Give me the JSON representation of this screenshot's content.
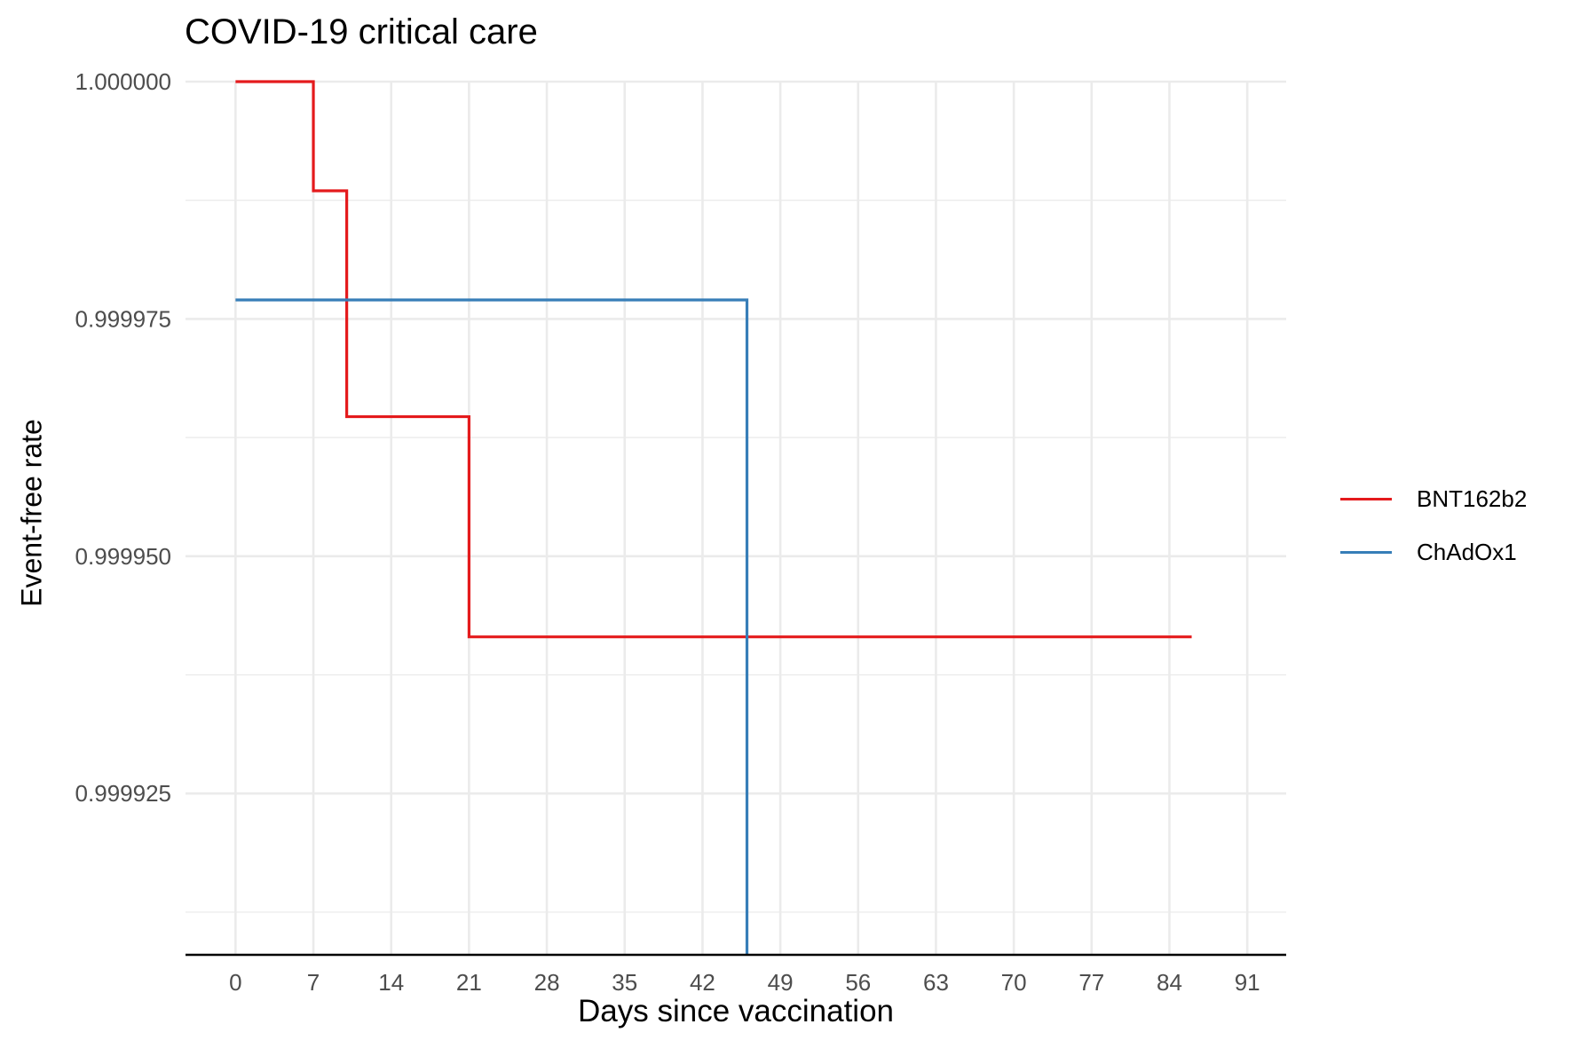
{
  "chart_data": {
    "type": "line",
    "step": true,
    "title": "COVID-19 critical care",
    "xlabel": "Days since vaccination",
    "ylabel": "Event-free rate",
    "x_ticks": [
      0,
      7,
      14,
      21,
      28,
      35,
      42,
      49,
      56,
      63,
      70,
      77,
      84,
      91
    ],
    "y_ticks": [
      0.999925,
      0.99995,
      0.999975,
      1.0
    ],
    "y_tick_labels": [
      "0.999925",
      "0.999950",
      "0.999975",
      "1.000000"
    ],
    "xlim": [
      -4.5,
      94.5
    ],
    "ylim": [
      0.999908,
      1.0
    ],
    "grid": true,
    "legend_position": "right",
    "series": [
      {
        "name": "BNT162b2",
        "color": "#E41A1C",
        "x": [
          0,
          7,
          7,
          10,
          10,
          21,
          21,
          86
        ],
        "y": [
          1.0,
          1.0,
          0.9999885,
          0.9999885,
          0.9999647,
          0.9999647,
          0.9999415,
          0.9999415
        ]
      },
      {
        "name": "ChAdOx1",
        "color": "#377EB8",
        "x": [
          0,
          46,
          46
        ],
        "y": [
          0.999977,
          0.999977,
          0.999908
        ]
      }
    ]
  }
}
